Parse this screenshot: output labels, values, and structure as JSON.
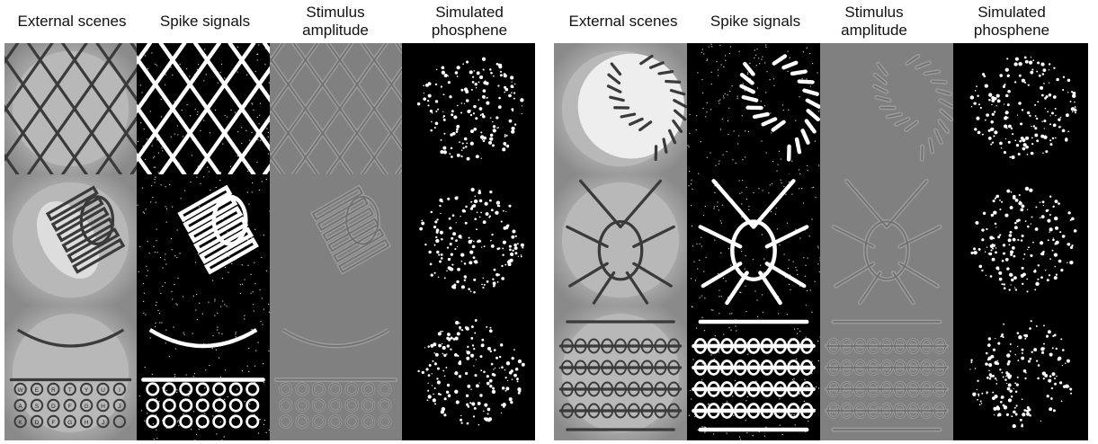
{
  "panels": [
    {
      "id": "left",
      "headers": [
        "External scenes",
        "Spike signals",
        "Stimulus\namplitude",
        "Simulated\nphosphene"
      ],
      "rows": [
        {
          "subject": "lattice-dome"
        },
        {
          "subject": "rolled-film"
        },
        {
          "subject": "typewriter"
        }
      ]
    },
    {
      "id": "right",
      "headers": [
        "External  scenes",
        "Spike signals",
        "Stimulus\namplitude",
        "Simulated\nphosphene"
      ],
      "rows": [
        {
          "subject": "baseball"
        },
        {
          "subject": "bug"
        },
        {
          "subject": "abacus"
        }
      ]
    }
  ],
  "typewriter_keys": [
    "W",
    "E",
    "R",
    "T",
    "Y",
    "U",
    "I",
    "A",
    "S",
    "D",
    "F",
    "G",
    "H",
    "J",
    "K",
    "D",
    "F",
    "G",
    "H",
    "J"
  ],
  "colors": {
    "background": "#ffffff",
    "scene_gray": "#a9a9a9",
    "amplitude_gray": "#808080",
    "spike_black": "#000000",
    "phosphene_black": "#000000"
  }
}
